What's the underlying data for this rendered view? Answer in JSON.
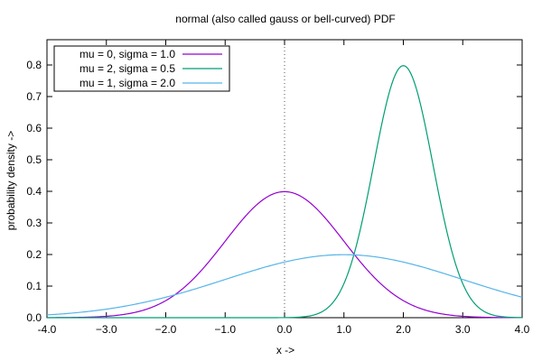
{
  "chart_data": {
    "type": "line",
    "title": "normal (also called gauss or bell-curved) PDF",
    "xlabel": "x ->",
    "ylabel": "probability density ->",
    "xlim": [
      -4.0,
      4.0
    ],
    "ylim": [
      0.0,
      0.88
    ],
    "xticks": [
      -4.0,
      -3.0,
      -2.0,
      -1.0,
      0.0,
      1.0,
      2.0,
      3.0,
      4.0
    ],
    "xtick_labels": [
      "-4.0",
      "−3.0",
      "−2.0",
      "−1.0",
      "0.0",
      "1.0",
      "2.0",
      "3.0",
      "4.0"
    ],
    "yticks": [
      0,
      0.1,
      0.2,
      0.3,
      0.4,
      0.5,
      0.6,
      0.7,
      0.8
    ],
    "ytick_labels": [
      "0.0",
      "0.1",
      "0.2",
      "0.3",
      "0.4",
      "0.5",
      "0.6",
      "0.7",
      "0.8"
    ],
    "grid": false,
    "reference_line": {
      "x": 0.0,
      "style": "dotted"
    },
    "legend_position": "top-left",
    "series": [
      {
        "name": "mu = 0, sigma = 1.0",
        "mu": 0,
        "sigma": 1.0,
        "color": "#9400d3"
      },
      {
        "name": "mu = 2, sigma = 0.5",
        "mu": 2,
        "sigma": 0.5,
        "color": "#009e73"
      },
      {
        "name": "mu = 1, sigma = 2.0",
        "mu": 1,
        "sigma": 2.0,
        "color": "#56b4e9"
      }
    ]
  }
}
